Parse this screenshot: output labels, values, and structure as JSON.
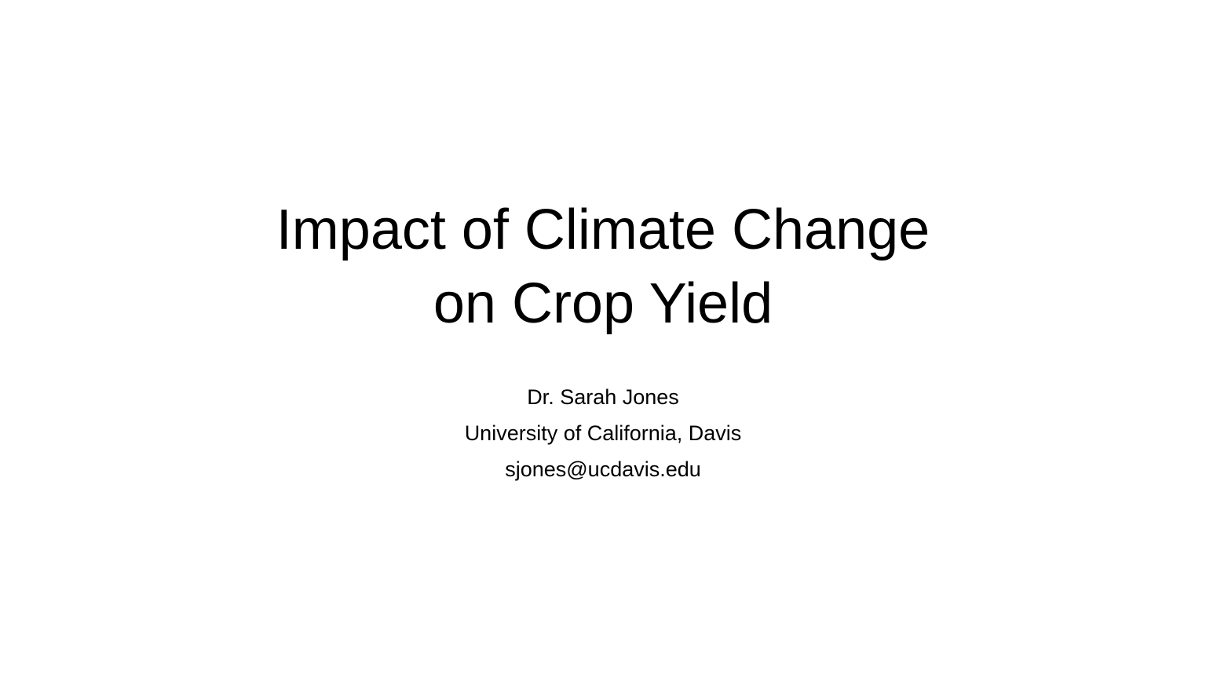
{
  "slide": {
    "title_lines": [
      "Impact of Climate Change",
      "on Crop Yield"
    ],
    "author": "Dr. Sarah Jones",
    "affiliation": "University of California, Davis",
    "email": "sjones@ucdavis.edu"
  }
}
